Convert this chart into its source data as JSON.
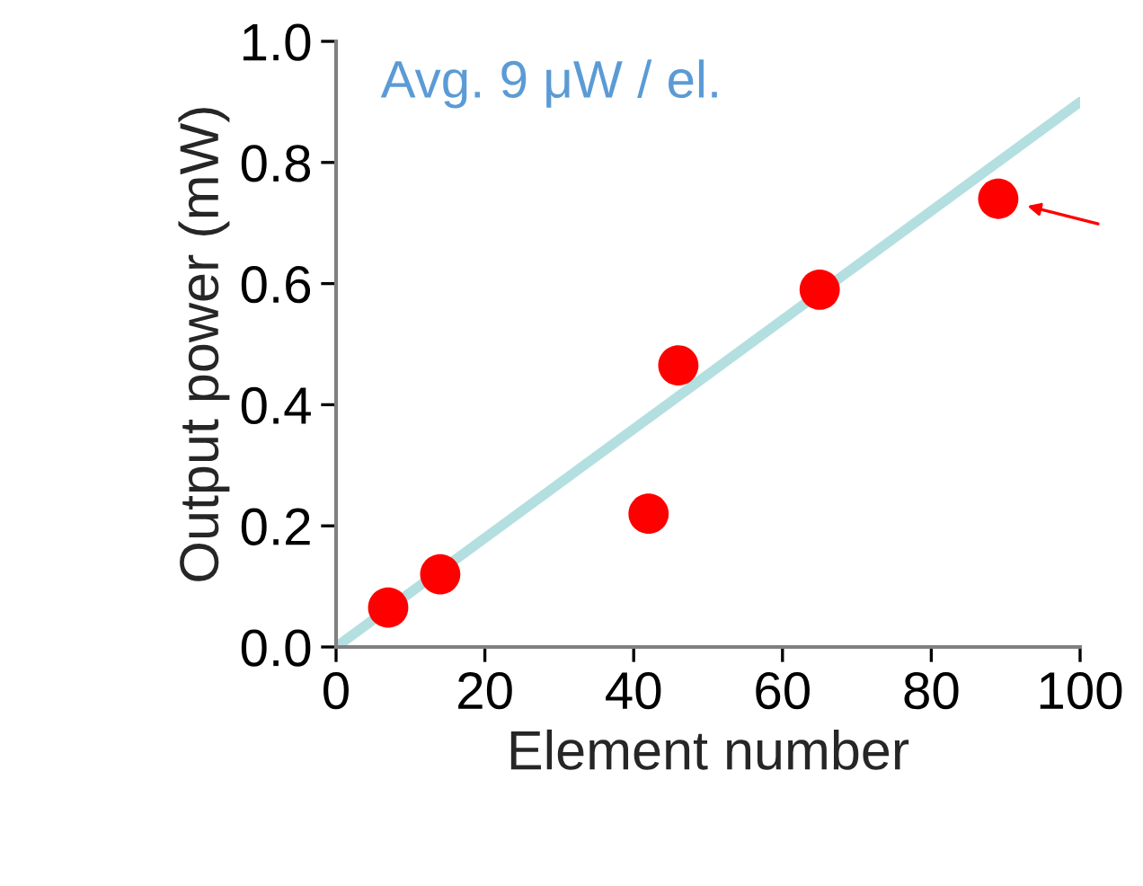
{
  "chart_data": {
    "type": "scatter",
    "xlabel": "Element number",
    "ylabel": "Output power (mW)",
    "annotations": [
      "Avg. 9 μW / el."
    ],
    "series": [
      {
        "color": "#ff0000",
        "marker": "circle",
        "x": [
          7,
          14,
          42,
          46,
          65,
          89
        ],
        "values": [
          0.065,
          0.12,
          0.22,
          0.465,
          0.59,
          0.74
        ]
      },
      {
        "type": "line",
        "marker": "none",
        "color": "#b4dfe0",
        "x": [
          0,
          100
        ],
        "values": [
          0,
          0.9
        ]
      }
    ],
    "xlim": [
      0,
      100
    ],
    "ylim": [
      0,
      1.0
    ],
    "xticks": [
      0,
      20,
      40,
      60,
      80,
      100
    ],
    "yticks": [
      {
        "value": 0,
        "label": "0.0"
      },
      {
        "value": 0.2,
        "label": "0.2"
      },
      {
        "value": 0.4,
        "label": "0.4"
      },
      {
        "value": 0.6,
        "label": "0.6"
      },
      {
        "value": 0.8,
        "label": "0.8"
      },
      {
        "value": 1.0,
        "label": "1.0"
      }
    ],
    "grid": false,
    "legend": false
  }
}
